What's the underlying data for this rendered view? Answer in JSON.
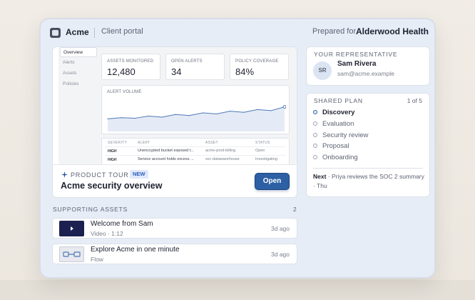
{
  "header": {
    "brand": "Acme",
    "portal_label": "Client portal",
    "prepared_for_label": "Prepared for",
    "client_name": "Alderwood Health"
  },
  "preview": {
    "sidebar": [
      "Overview",
      "Alerts",
      "Assets",
      "Policies"
    ],
    "stats": [
      {
        "label": "ASSETS MONITORED",
        "value": "12,480"
      },
      {
        "label": "OPEN ALERTS",
        "value": "34"
      },
      {
        "label": "POLICY COVERAGE",
        "value": "84%"
      }
    ],
    "chart": {
      "title": "ALERT VOLUME"
    },
    "table": {
      "headers": [
        "SEVERITY",
        "ALERT",
        "ASSET",
        "STATUS"
      ],
      "rows": [
        [
          "HIGH",
          "Unencrypted bucket exposed t...",
          "acme-prod-billing",
          "Open"
        ],
        [
          "HIGH",
          "Service account holds excess ...",
          "svc-datawarehouse",
          "Investigating"
        ]
      ]
    }
  },
  "tour": {
    "kicker": "PRODUCT TOUR",
    "badge": "NEW",
    "title": "Acme security overview",
    "button": "Open"
  },
  "supporting_assets": {
    "heading": "SUPPORTING ASSETS",
    "count": "2",
    "items": [
      {
        "title": "Welcome from Sam",
        "meta": "Video · 1:12",
        "age": "3d ago",
        "thumb_icon": "play-icon"
      },
      {
        "title": "Explore Acme in one minute",
        "meta": "Flow",
        "age": "3d ago",
        "thumb_icon": "flow-icon"
      }
    ]
  },
  "representative": {
    "kicker": "YOUR REPRESENTATIVE",
    "initials": "SR",
    "name": "Sam Rivera",
    "email": "sam@acme.example"
  },
  "plan": {
    "kicker": "SHARED PLAN",
    "count": "1 of 5",
    "steps": [
      "Discovery",
      "Evaluation",
      "Security review",
      "Proposal",
      "Onboarding"
    ],
    "current_step": 0,
    "next_label": "Next",
    "next_text": " · Priya reviews the SOC 2 summary · Thu"
  },
  "chart_data": {
    "type": "area",
    "title": "ALERT VOLUME",
    "x": [
      1,
      2,
      3,
      4,
      5,
      6,
      7,
      8,
      9,
      10,
      11,
      12,
      13,
      14
    ],
    "values": [
      18,
      20,
      19,
      23,
      21,
      26,
      24,
      29,
      27,
      32,
      30,
      35,
      33,
      40
    ],
    "ylim": [
      0,
      50
    ],
    "grid": false
  },
  "colors": {
    "accent": "#2c5fa3",
    "frame": "#e7edf7",
    "chart_line": "#4f79b8",
    "chart_fill": "#e4ebf6"
  }
}
